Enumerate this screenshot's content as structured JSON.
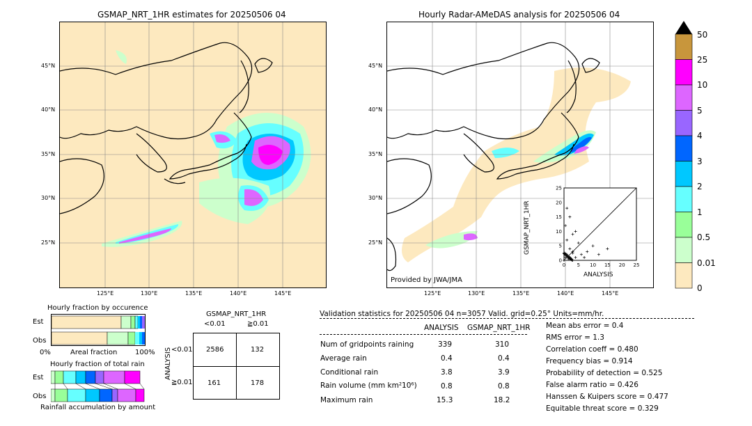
{
  "left_map": {
    "title": "GSMAP_NRT_1HR estimates for 20250506 04",
    "lat_labels": [
      "45°N",
      "40°N",
      "35°N",
      "30°N",
      "25°N"
    ],
    "lon_labels": [
      "125°E",
      "130°E",
      "135°E",
      "140°E",
      "145°E"
    ]
  },
  "right_map": {
    "title": "Hourly Radar-AMeDAS analysis for 20250506 04",
    "lat_labels": [
      "45°N",
      "40°N",
      "35°N",
      "30°N",
      "25°N"
    ],
    "lon_labels": [
      "125°E",
      "130°E",
      "135°E",
      "140°E",
      "145°E"
    ],
    "credit": "Provided by JWA/JMA"
  },
  "colorbar": {
    "labels": [
      "50",
      "25",
      "10",
      "5",
      "4",
      "3",
      "2",
      "1",
      "0.5",
      "0.01",
      "0"
    ],
    "colors": [
      "#c8963c",
      "#ff00ff",
      "#dd66ff",
      "#9966ff",
      "#0066ff",
      "#00c8ff",
      "#66ffff",
      "#99ff99",
      "#ccffcc",
      "#fde9bf"
    ]
  },
  "scatter": {
    "xlabel": "ANALYSIS",
    "ylabel": "GSMAP_NRT_1HR",
    "ticks": [
      "0",
      "5",
      "10",
      "15",
      "20",
      "25"
    ]
  },
  "fraction_occurrence": {
    "title": "Hourly fraction by occurence",
    "row_labels": [
      "Est",
      "Obs"
    ],
    "axis_left": "0%",
    "axis_mid": "Areal fraction",
    "axis_right": "100%"
  },
  "fraction_total": {
    "title": "Hourly fraction of total rain",
    "row_labels": [
      "Est",
      "Obs"
    ],
    "axis_caption": "Rainfall accumulation by amount"
  },
  "contingency": {
    "title": "GSMAP_NRT_1HR",
    "col_labels": [
      "<0.01",
      "≧0.01"
    ],
    "row_axis": "ANALYSIS",
    "row_labels": [
      "<0.01",
      "≧0.01"
    ],
    "cells": [
      "2586",
      "132",
      "161",
      "178"
    ]
  },
  "validation": {
    "header": "Validation statistics for 20250506 04  n=3057 Valid. grid=0.25° Units=mm/hr.",
    "col_headers": [
      "ANALYSIS",
      "GSMAP_NRT_1HR"
    ],
    "rows": [
      {
        "label": "Num of gridpoints raining",
        "analysis": "339",
        "gsmap": "310"
      },
      {
        "label": "Average rain",
        "analysis": "0.4",
        "gsmap": "0.4"
      },
      {
        "label": "Conditional rain",
        "analysis": "3.8",
        "gsmap": "3.9"
      },
      {
        "label": "Rain volume (mm km²10⁶)",
        "analysis": "0.8",
        "gsmap": "0.8"
      },
      {
        "label": "Maximum rain",
        "analysis": "15.3",
        "gsmap": "18.2"
      }
    ],
    "scores": [
      "Mean abs error =    0.4",
      "RMS error =    1.3",
      "Correlation coeff = 0.480",
      "Frequency bias =  0.914",
      "Probability of detection =  0.525",
      "False alarm ratio =  0.426",
      "Hanssen & Kuipers score =  0.477",
      "Equitable threat score =  0.329"
    ]
  },
  "chart_data": [
    {
      "type": "heatmap",
      "title": "GSMAP_NRT_1HR estimates for 20250506 04",
      "xlabel": "",
      "ylabel": "",
      "units": "mm/hr",
      "color_levels": [
        0,
        0.01,
        0.5,
        1,
        2,
        3,
        4,
        5,
        10,
        25,
        50
      ]
    },
    {
      "type": "heatmap",
      "title": "Hourly Radar-AMeDAS analysis for 20250506 04",
      "xlabel": "",
      "ylabel": "",
      "units": "mm/hr",
      "color_levels": [
        0,
        0.01,
        0.5,
        1,
        2,
        3,
        4,
        5,
        10,
        25,
        50
      ]
    },
    {
      "type": "scatter",
      "title": "",
      "xlabel": "ANALYSIS",
      "ylabel": "GSMAP_NRT_1HR",
      "xlim": [
        0,
        25
      ],
      "ylim": [
        0,
        25
      ],
      "x": [
        0.5,
        1,
        1.5,
        2,
        3,
        4,
        5,
        6,
        8,
        10,
        12,
        15,
        2,
        1,
        3,
        0.5,
        1,
        2,
        4,
        7
      ],
      "y": [
        1,
        2,
        0.5,
        4,
        3,
        1,
        6,
        2,
        3,
        5,
        2,
        4,
        15,
        18,
        9,
        12,
        7,
        0.5,
        10,
        1
      ]
    },
    {
      "type": "table",
      "title": "GSMAP_NRT_1HR",
      "columns": [
        "<0.01",
        "≧0.01"
      ],
      "rows": [
        [
          "2586",
          "132"
        ],
        [
          "161",
          "178"
        ]
      ]
    }
  ]
}
